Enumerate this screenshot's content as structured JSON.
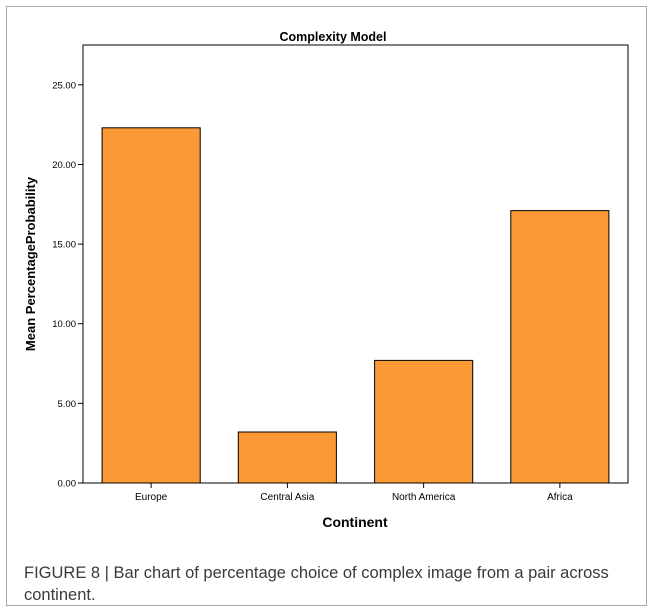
{
  "chart_data": {
    "type": "bar",
    "title": "Complexity Model",
    "xlabel": "Continent",
    "ylabel": "Mean PercentageProbability",
    "categories": [
      "Europe",
      "Central Asia",
      "North America",
      "Africa"
    ],
    "values": [
      22.3,
      3.2,
      7.7,
      17.1
    ],
    "ylim": [
      0,
      27.5
    ],
    "yticks": [
      "0.00",
      "5.00",
      "10.00",
      "15.00",
      "20.00",
      "25.00"
    ],
    "grid": false,
    "bar_color": "#fb9937",
    "bar_edge_color": "#000000"
  },
  "caption": "FIGURE 8 | Bar chart of percentage choice of complex image from a pair across continent."
}
